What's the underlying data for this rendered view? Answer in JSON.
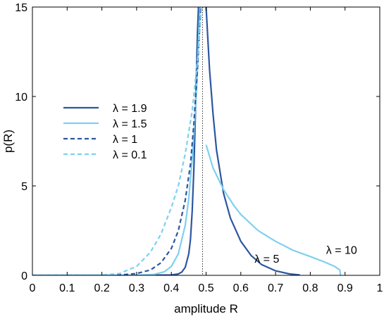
{
  "chart_data": {
    "type": "line",
    "xlabel": "amplitude R",
    "ylabel": "p(R)",
    "xlim": [
      0,
      1
    ],
    "ylim": [
      0,
      15
    ],
    "xticks": [
      "0",
      "0.1",
      "0.2",
      "0.3",
      "0.4",
      "0.5",
      "0.6",
      "0.7",
      "0.8",
      "0.9",
      "1"
    ],
    "yticks": [
      "0",
      "5",
      "10",
      "15"
    ],
    "grid": false,
    "legend_position": "left",
    "reference_line": {
      "x": 0.49,
      "style": "dotted"
    },
    "series": [
      {
        "name": "λ = 1.9",
        "color": "#2c56a0",
        "dash": "solid",
        "points": [
          [
            0,
            0.0
          ],
          [
            0.3,
            0.0
          ],
          [
            0.4,
            0.02
          ],
          [
            0.42,
            0.08
          ],
          [
            0.43,
            0.18
          ],
          [
            0.44,
            0.45
          ],
          [
            0.45,
            1.2
          ],
          [
            0.455,
            2.0
          ],
          [
            0.46,
            3.6
          ],
          [
            0.465,
            6.0
          ],
          [
            0.47,
            9.5
          ],
          [
            0.475,
            13.5
          ],
          [
            0.478,
            15.0
          ]
        ]
      },
      {
        "name": "λ = 1.5",
        "color": "#7fd0ee",
        "dash": "solid",
        "points": [
          [
            0,
            0.0
          ],
          [
            0.3,
            0.01
          ],
          [
            0.35,
            0.05
          ],
          [
            0.38,
            0.2
          ],
          [
            0.4,
            0.5
          ],
          [
            0.42,
            1.2
          ],
          [
            0.44,
            2.8
          ],
          [
            0.45,
            4.3
          ],
          [
            0.46,
            6.5
          ],
          [
            0.47,
            9.5
          ],
          [
            0.475,
            11.5
          ],
          [
            0.48,
            14.0
          ],
          [
            0.483,
            15.0
          ]
        ]
      },
      {
        "name": "λ = 1",
        "color": "#2c56a0",
        "dash": "dashed",
        "points": [
          [
            0,
            0.0
          ],
          [
            0.25,
            0.02
          ],
          [
            0.3,
            0.1
          ],
          [
            0.34,
            0.3
          ],
          [
            0.37,
            0.7
          ],
          [
            0.4,
            1.5
          ],
          [
            0.42,
            2.5
          ],
          [
            0.44,
            4.2
          ],
          [
            0.455,
            6.2
          ],
          [
            0.465,
            8.5
          ],
          [
            0.475,
            11.5
          ],
          [
            0.485,
            15.0
          ]
        ]
      },
      {
        "name": "λ = 0.1",
        "color": "#7fd0ee",
        "dash": "dashed",
        "points": [
          [
            0,
            0.0
          ],
          [
            0.2,
            0.02
          ],
          [
            0.25,
            0.1
          ],
          [
            0.3,
            0.5
          ],
          [
            0.34,
            1.3
          ],
          [
            0.37,
            2.3
          ],
          [
            0.4,
            3.8
          ],
          [
            0.42,
            5.0
          ],
          [
            0.44,
            6.8
          ],
          [
            0.46,
            9.2
          ],
          [
            0.475,
            12.0
          ],
          [
            0.487,
            15.0
          ]
        ]
      },
      {
        "name": "λ = 5",
        "color": "#2c56a0",
        "dash": "solid",
        "points": [
          [
            0.5,
            15.0
          ],
          [
            0.51,
            11.5
          ],
          [
            0.52,
            9.0
          ],
          [
            0.53,
            7.0
          ],
          [
            0.55,
            4.6
          ],
          [
            0.57,
            3.2
          ],
          [
            0.6,
            1.9
          ],
          [
            0.63,
            1.1
          ],
          [
            0.66,
            0.6
          ],
          [
            0.7,
            0.25
          ],
          [
            0.74,
            0.08
          ],
          [
            0.77,
            0.02
          ]
        ]
      },
      {
        "name": "λ = 10",
        "color": "#7fd0ee",
        "dash": "solid",
        "points": [
          [
            0.5,
            7.3
          ],
          [
            0.52,
            6.0
          ],
          [
            0.55,
            4.8
          ],
          [
            0.58,
            3.9
          ],
          [
            0.6,
            3.4
          ],
          [
            0.65,
            2.5
          ],
          [
            0.7,
            1.9
          ],
          [
            0.75,
            1.4
          ],
          [
            0.8,
            1.05
          ],
          [
            0.84,
            0.75
          ],
          [
            0.87,
            0.5
          ],
          [
            0.885,
            0.3
          ],
          [
            0.887,
            0.0
          ]
        ]
      }
    ],
    "legend": [
      "λ = 1.9",
      "λ = 1.5",
      "λ = 1",
      "λ = 0.1"
    ],
    "annotations": [
      {
        "text": "λ = 5",
        "x": 0.675,
        "y": 0.7
      },
      {
        "text": "λ = 10",
        "x": 0.89,
        "y": 1.2
      }
    ]
  }
}
